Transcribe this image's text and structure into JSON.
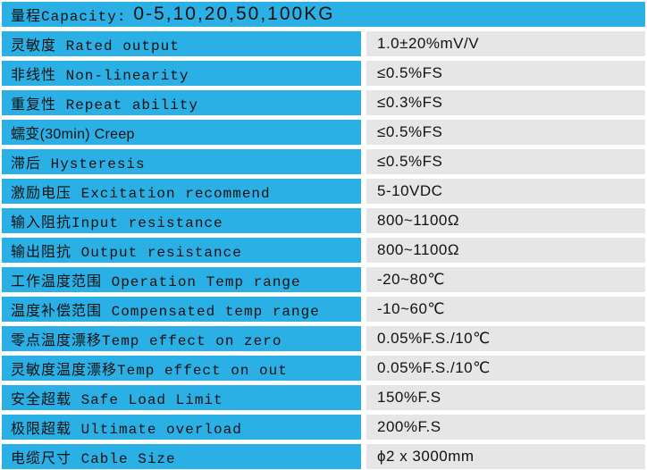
{
  "colors": {
    "accent_blue": "#2bb0e6",
    "value_cell_bg": "#e6e6e6",
    "divider_white": "#ffffff",
    "text": "#111111"
  },
  "header": {
    "label": "量程Capacity:",
    "capacity": "0-5,10,20,50,100KG"
  },
  "rows": [
    {
      "label": "灵敏度 Rated output",
      "value": "1.0±20%mV/V"
    },
    {
      "label": "非线性 Non-linearity",
      "value": "≤0.5%FS"
    },
    {
      "label": "重复性 Repeat ability",
      "value": "≤0.3%FS"
    },
    {
      "label": "蠕变(30min) Creep",
      "value": "≤0.5%FS"
    },
    {
      "label": "滞后 Hysteresis",
      "value": "≤0.5%FS"
    },
    {
      "label": "激励电压 Excitation recommend",
      "value": "5-10VDC"
    },
    {
      "label": "输入阻抗Input resistance",
      "value": "800~1100Ω"
    },
    {
      "label": "输出阻抗 Output resistance",
      "value": "800~1100Ω"
    },
    {
      "label": "工作温度范围 Operation Temp range",
      "value": "-20~80℃"
    },
    {
      "label": "温度补偿范围 Compensated temp range",
      "value": "-10~60℃"
    },
    {
      "label": "零点温度漂移Temp effect on zero",
      "value": "0.05%F.S./10℃"
    },
    {
      "label": "灵敏度温度漂移Temp effect on out",
      "value": "0.05%F.S./10℃"
    },
    {
      "label": "安全超载 Safe Load Limit",
      "value": "150%F.S"
    },
    {
      "label": "极限超载 Ultimate overload",
      "value": "200%F.S"
    },
    {
      "label": "电缆尺寸 Cable Size",
      "value": "ϕ2 x 3000mm"
    }
  ]
}
